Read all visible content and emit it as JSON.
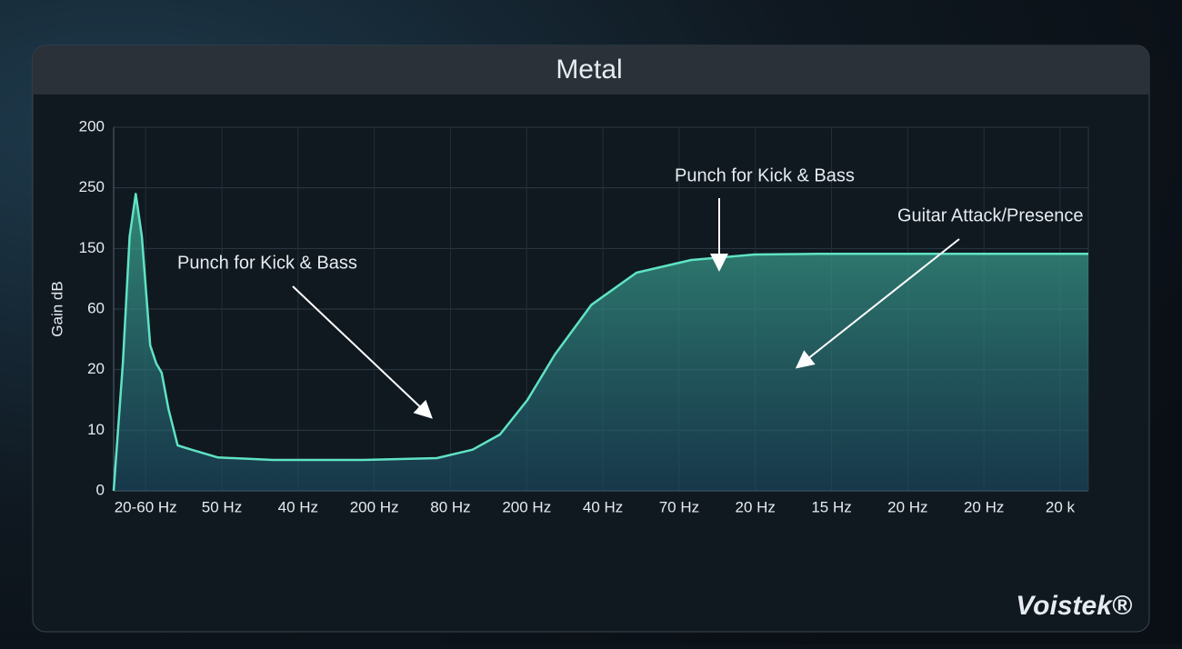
{
  "chart_data": {
    "type": "area",
    "title": "Metal",
    "ylabel": "Gain dB",
    "brand": "Voistek®",
    "categories": [
      "20-60 Hz",
      "50 Hz",
      "40 Hz",
      "200 Hz",
      "80 Hz",
      "200 Hz",
      "40 Hz",
      "70 Hz",
      "20 Hz",
      "15 Hz",
      "20 Hz",
      "20 Hz",
      "20 k"
    ],
    "xlim": [
      -0.42,
      12.37
    ],
    "ylim": [
      0,
      6
    ],
    "yticks": [
      0,
      {
        "value": 1,
        "label": "10"
      },
      {
        "value": 2,
        "label": "20"
      },
      {
        "value": 3,
        "label": "60"
      },
      {
        "value": 4,
        "label": "150"
      },
      {
        "value": 5,
        "label": "250"
      },
      {
        "value": 6,
        "label": "200"
      }
    ],
    "grid": true,
    "color": "#5fe3c4",
    "x": [
      -0.42,
      -0.3,
      -0.21,
      -0.13,
      -0.05,
      0.06,
      0.14,
      0.21,
      0.3,
      0.42,
      0.6,
      0.95,
      1.67,
      2.86,
      3.82,
      4.29,
      4.65,
      5.01,
      5.37,
      5.85,
      6.44,
      7.16,
      7.99,
      8.83,
      12.37
    ],
    "values": [
      0,
      2.1,
      4.2,
      4.9,
      4.2,
      2.4,
      2.1,
      1.95,
      1.35,
      0.75,
      0.68,
      0.55,
      0.51,
      0.51,
      0.54,
      0.68,
      0.93,
      1.5,
      2.25,
      3.07,
      3.6,
      3.81,
      3.9,
      3.91,
      3.91
    ],
    "annotations": [
      "Punch for Kick & Bass",
      "Punch for Kick & Bass",
      "Guitar Attack/Presence"
    ]
  }
}
